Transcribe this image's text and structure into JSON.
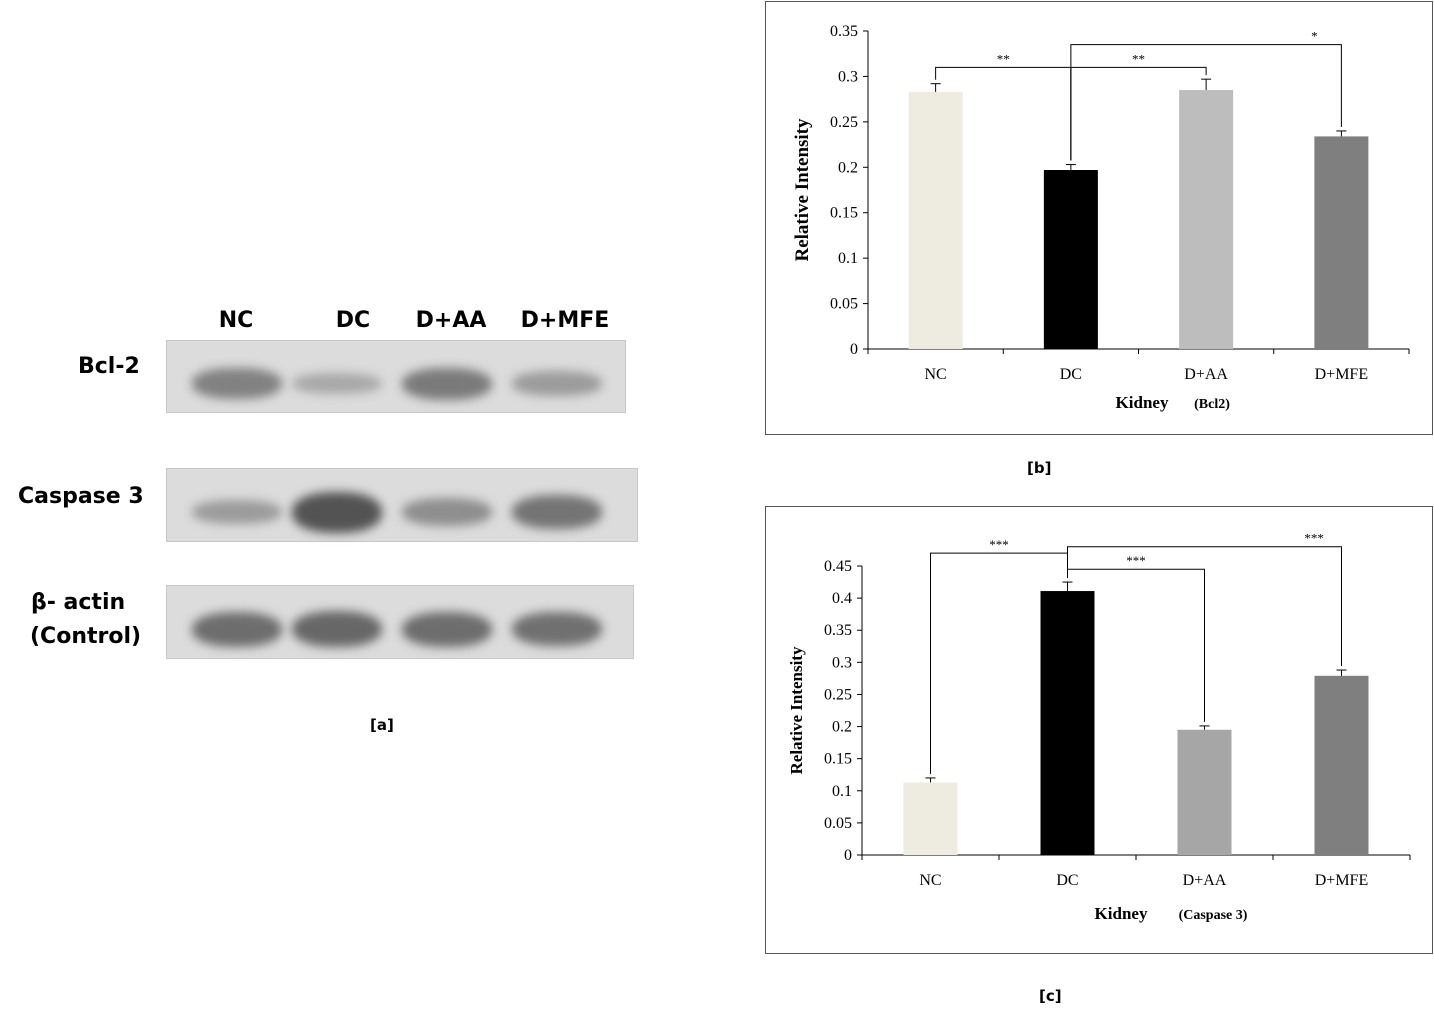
{
  "blot": {
    "lanes": [
      "NC",
      "DC",
      "D+AA",
      "D+MFE"
    ],
    "rows": [
      {
        "label": "Bcl-2",
        "intensity": [
          0.55,
          0.25,
          0.6,
          0.35
        ]
      },
      {
        "label": "Caspase 3",
        "intensity": [
          0.35,
          0.9,
          0.45,
          0.65
        ]
      },
      {
        "label_line1": "β- actin",
        "label_line2": "(Control)",
        "intensity": [
          0.7,
          0.75,
          0.7,
          0.68
        ]
      }
    ],
    "caption": "[a]"
  },
  "chart_data": [
    {
      "type": "bar",
      "caption": "[b]",
      "categories": [
        "NC",
        "DC",
        "D+AA",
        "D+MFE"
      ],
      "values": [
        0.283,
        0.197,
        0.285,
        0.234
      ],
      "errors": [
        0.009,
        0.006,
        0.012,
        0.006
      ],
      "colors": [
        "#eeebe1",
        "#000000",
        "#bdbdbd",
        "#7f7f7f"
      ],
      "ylabel": "Relative Intensity",
      "xlabel": "Kidney",
      "xlabel_note": "(Bcl2)",
      "ylim": [
        0,
        0.35
      ],
      "yticks": [
        "0",
        "0.05",
        "0.1",
        "0.15",
        "0.2",
        "0.25",
        "0.3",
        "0.35"
      ],
      "significance": [
        {
          "from": 0,
          "to": 1,
          "label": "**",
          "level": 0.31
        },
        {
          "from": 1,
          "to": 2,
          "label": "**",
          "level": 0.31
        },
        {
          "from": 1,
          "to": 3,
          "label": "*",
          "level": 0.335
        }
      ]
    },
    {
      "type": "bar",
      "caption": "[c]",
      "categories": [
        "NC",
        "DC",
        "D+AA",
        "D+MFE"
      ],
      "values": [
        0.113,
        0.411,
        0.195,
        0.279
      ],
      "errors": [
        0.007,
        0.014,
        0.006,
        0.009
      ],
      "colors": [
        "#eeebe1",
        "#000000",
        "#a6a6a6",
        "#7f7f7f"
      ],
      "ylabel": "Relative Intensity",
      "xlabel": "Kidney",
      "xlabel_note": "(Caspase 3)",
      "ylim": [
        0,
        0.45
      ],
      "yticks": [
        "0",
        "0.05",
        "0.1",
        "0.15",
        "0.2",
        "0.25",
        "0.3",
        "0.35",
        "0.4",
        "0.45"
      ],
      "significance": [
        {
          "from": 0,
          "to": 1,
          "label": "***",
          "level": 0.47
        },
        {
          "from": 1,
          "to": 2,
          "label": "***",
          "level": 0.445
        },
        {
          "from": 1,
          "to": 3,
          "label": "***",
          "level": 0.48
        }
      ]
    }
  ]
}
